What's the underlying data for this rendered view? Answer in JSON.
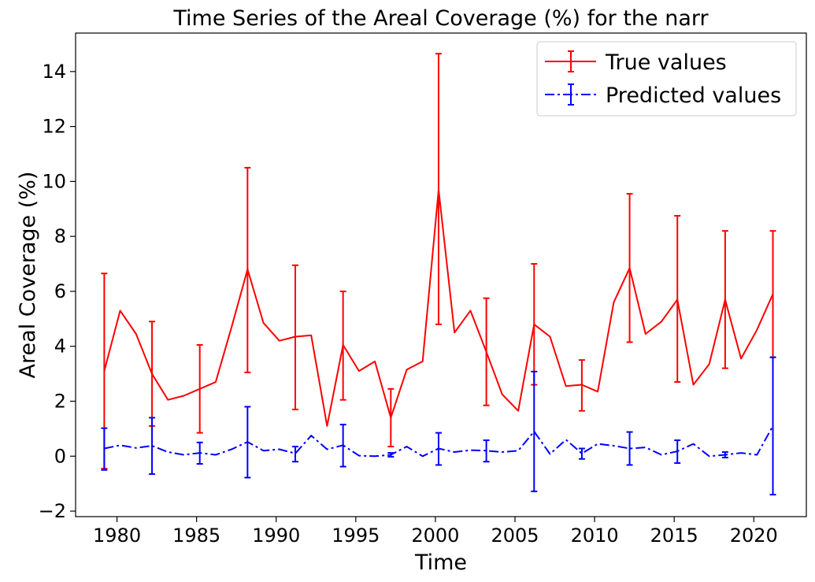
{
  "chart_data": {
    "type": "line",
    "title": "Time Series of the Areal Coverage (%) for the narr",
    "xlabel": "Time",
    "ylabel": "Areal Coverage (%)",
    "xlim": [
      1977.4,
      2023.3
    ],
    "ylim": [
      -2.2,
      15.4
    ],
    "xticks": [
      1980,
      1985,
      1990,
      1995,
      2000,
      2005,
      2010,
      2015,
      2020
    ],
    "yticks": [
      -2,
      0,
      2,
      4,
      6,
      8,
      10,
      12,
      14
    ],
    "legend_position": "top-right",
    "series": [
      {
        "name": "True values",
        "color": "#ff0000",
        "linestyle": "solid",
        "x": [
          1979.2,
          1980.2,
          1981.2,
          1982.2,
          1983.2,
          1984.2,
          1985.2,
          1986.2,
          1987.2,
          1988.2,
          1989.2,
          1990.2,
          1991.2,
          1992.2,
          1993.2,
          1994.2,
          1995.2,
          1996.2,
          1997.2,
          1998.2,
          1999.2,
          2000.2,
          2001.2,
          2002.2,
          2003.2,
          2004.2,
          2005.2,
          2006.2,
          2007.2,
          2008.2,
          2009.2,
          2010.2,
          2011.2,
          2012.2,
          2013.2,
          2014.2,
          2015.2,
          2016.2,
          2017.2,
          2018.2,
          2019.2,
          2020.2,
          2021.2
        ],
        "y": [
          3.1,
          5.3,
          4.45,
          3.0,
          2.05,
          2.2,
          2.45,
          2.7,
          4.7,
          6.8,
          4.85,
          4.2,
          4.35,
          4.4,
          1.1,
          4.05,
          3.1,
          3.45,
          1.4,
          3.15,
          3.45,
          9.7,
          4.5,
          5.3,
          3.8,
          2.25,
          1.65,
          4.8,
          4.35,
          2.55,
          2.6,
          2.35,
          5.6,
          6.85,
          4.45,
          4.9,
          5.7,
          2.6,
          3.35,
          5.7,
          3.55,
          4.6,
          5.9
        ],
        "error_bars": [
          {
            "x": 1979.2,
            "low": -0.45,
            "high": 6.65
          },
          {
            "x": 1982.2,
            "low": 1.1,
            "high": 4.9
          },
          {
            "x": 1985.2,
            "low": 0.85,
            "high": 4.05
          },
          {
            "x": 1988.2,
            "low": 3.05,
            "high": 10.5
          },
          {
            "x": 1991.2,
            "low": 1.7,
            "high": 6.95
          },
          {
            "x": 1994.2,
            "low": 2.05,
            "high": 6.0
          },
          {
            "x": 1997.2,
            "low": 0.35,
            "high": 2.45
          },
          {
            "x": 2000.2,
            "low": 4.8,
            "high": 14.65
          },
          {
            "x": 2003.2,
            "low": 1.85,
            "high": 5.75
          },
          {
            "x": 2006.2,
            "low": 2.6,
            "high": 7.0
          },
          {
            "x": 2009.2,
            "low": 1.65,
            "high": 3.5
          },
          {
            "x": 2012.2,
            "low": 4.15,
            "high": 9.55
          },
          {
            "x": 2015.2,
            "low": 2.7,
            "high": 8.75
          },
          {
            "x": 2018.2,
            "low": 3.2,
            "high": 8.2
          },
          {
            "x": 2021.2,
            "low": 3.6,
            "high": 8.2
          }
        ]
      },
      {
        "name": "Predicted values",
        "color": "#0000ff",
        "linestyle": "dashdot",
        "x": [
          1979.2,
          1980.2,
          1981.2,
          1982.2,
          1983.2,
          1984.2,
          1985.2,
          1986.2,
          1987.2,
          1988.2,
          1989.2,
          1990.2,
          1991.2,
          1992.2,
          1993.2,
          1994.2,
          1995.2,
          1996.2,
          1997.2,
          1998.2,
          1999.2,
          2000.2,
          2001.2,
          2002.2,
          2003.2,
          2004.2,
          2005.2,
          2006.2,
          2007.2,
          2008.2,
          2009.2,
          2010.2,
          2011.2,
          2012.2,
          2013.2,
          2014.2,
          2015.2,
          2016.2,
          2017.2,
          2018.2,
          2019.2,
          2020.2,
          2021.2
        ],
        "y": [
          0.28,
          0.4,
          0.3,
          0.38,
          0.15,
          0.05,
          0.12,
          0.05,
          0.25,
          0.52,
          0.2,
          0.25,
          0.1,
          0.75,
          0.25,
          0.4,
          0.02,
          0.0,
          0.05,
          0.35,
          0.0,
          0.28,
          0.15,
          0.22,
          0.2,
          0.15,
          0.2,
          0.9,
          0.08,
          0.6,
          0.1,
          0.45,
          0.38,
          0.28,
          0.32,
          0.05,
          0.18,
          0.45,
          0.0,
          0.05,
          0.12,
          0.05,
          1.1
        ],
        "error_bars": [
          {
            "x": 1979.2,
            "low": -0.5,
            "high": 1.02
          },
          {
            "x": 1982.2,
            "low": -0.65,
            "high": 1.4
          },
          {
            "x": 1985.2,
            "low": -0.28,
            "high": 0.5
          },
          {
            "x": 1988.2,
            "low": -0.78,
            "high": 1.8
          },
          {
            "x": 1991.2,
            "low": -0.2,
            "high": 0.35
          },
          {
            "x": 1994.2,
            "low": -0.38,
            "high": 1.15
          },
          {
            "x": 1997.2,
            "low": -0.02,
            "high": 0.12
          },
          {
            "x": 2000.2,
            "low": -0.32,
            "high": 0.85
          },
          {
            "x": 2003.2,
            "low": -0.2,
            "high": 0.58
          },
          {
            "x": 2006.2,
            "low": -1.28,
            "high": 3.08
          },
          {
            "x": 2009.2,
            "low": -0.1,
            "high": 0.28
          },
          {
            "x": 2012.2,
            "low": -0.32,
            "high": 0.88
          },
          {
            "x": 2015.2,
            "low": -0.25,
            "high": 0.58
          },
          {
            "x": 2018.2,
            "low": -0.05,
            "high": 0.15
          },
          {
            "x": 2021.2,
            "low": -1.4,
            "high": 3.6
          }
        ]
      }
    ]
  }
}
